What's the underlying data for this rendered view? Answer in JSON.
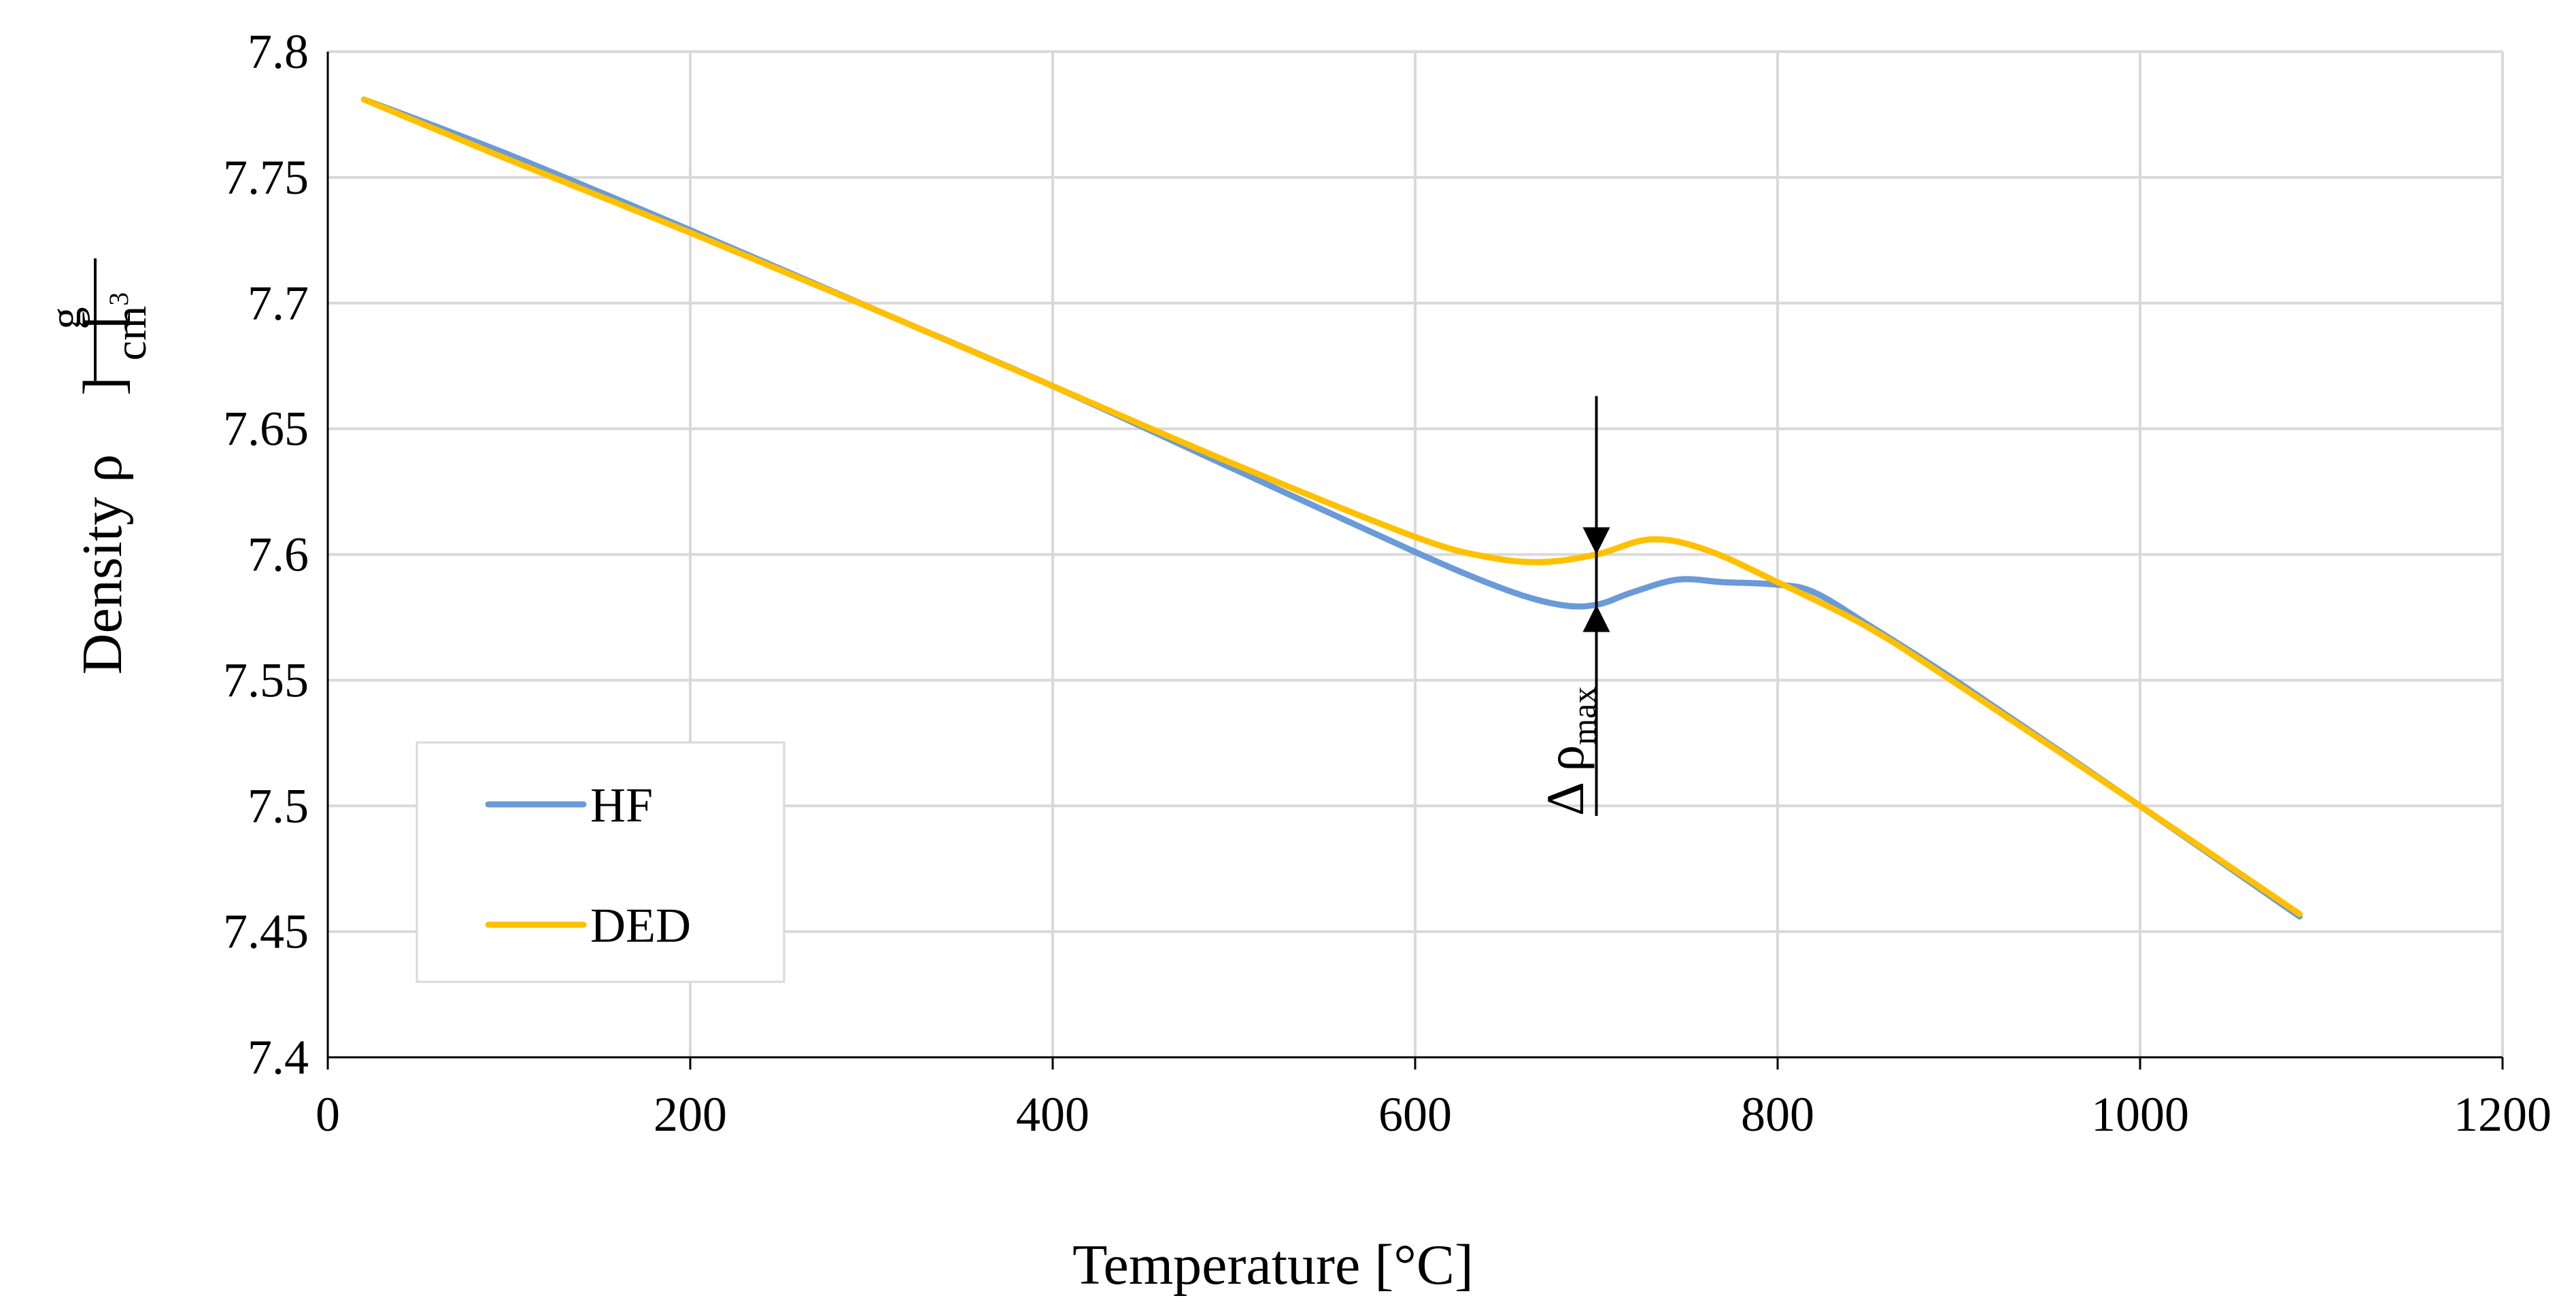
{
  "chart_data": {
    "type": "line",
    "title": "",
    "xlabel": "Temperature [°C]",
    "ylabel_text": "Density ρ",
    "ylabel_unit_numerator": "g",
    "ylabel_unit_denominator": "cm",
    "ylabel_unit_exponent": "3",
    "xlim": [
      0,
      1200
    ],
    "ylim": [
      7.4,
      7.8
    ],
    "x_ticks": [
      0,
      200,
      400,
      600,
      800,
      1000,
      1200
    ],
    "x_tick_labels": [
      "0",
      "200",
      "400",
      "600",
      "800",
      "1000",
      "1200"
    ],
    "y_ticks": [
      7.4,
      7.45,
      7.5,
      7.55,
      7.6,
      7.65,
      7.7,
      7.75,
      7.8
    ],
    "y_tick_labels": [
      "7.4",
      "7.45",
      "7.5",
      "7.55",
      "7.6",
      "7.65",
      "7.7",
      "7.75",
      "7.8"
    ],
    "grid": true,
    "legend_position": "bottom-left",
    "series": [
      {
        "name": "HF",
        "color": "#6A9AD8",
        "x": [
          20,
          100,
          200,
          300,
          400,
          500,
          600,
          650,
          680,
          700,
          720,
          745,
          770,
          800,
          820,
          850,
          900,
          1000,
          1088
        ],
        "y": [
          7.781,
          7.759,
          7.729,
          7.698,
          7.667,
          7.634,
          7.601,
          7.586,
          7.58,
          7.58,
          7.585,
          7.59,
          7.589,
          7.588,
          7.585,
          7.572,
          7.549,
          7.5,
          7.456
        ]
      },
      {
        "name": "DED",
        "color": "#FFC000",
        "x": [
          20,
          100,
          200,
          300,
          400,
          500,
          600,
          640,
          670,
          700,
          730,
          760,
          800,
          850,
          900,
          1000,
          1088
        ],
        "y": [
          7.781,
          7.757,
          7.728,
          7.698,
          7.667,
          7.636,
          7.607,
          7.599,
          7.597,
          7.6,
          7.606,
          7.602,
          7.589,
          7.571,
          7.548,
          7.5,
          7.457
        ]
      }
    ],
    "annotation": {
      "label": "Δ ρ",
      "subscript": "max",
      "x": 700,
      "y_top": 7.6,
      "y_bottom": 7.58,
      "line_y_start": 7.663,
      "line_y_end": 7.496
    }
  }
}
